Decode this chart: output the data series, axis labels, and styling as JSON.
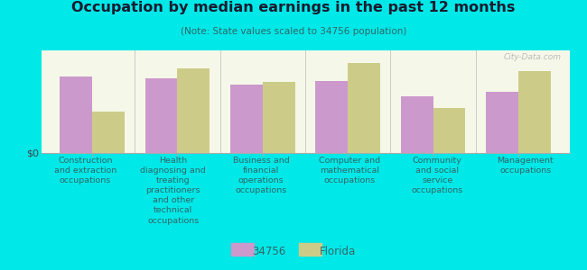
{
  "title": "Occupation by median earnings in the past 12 months",
  "subtitle": "(Note: State values scaled to 34756 population)",
  "categories": [
    "Construction\nand extraction\noccupations",
    "Health\ndiagnosing and\ntreating\npractitioners\nand other\ntechnical\noccupations",
    "Business and\nfinancial\noperations\noccupations",
    "Computer and\nmathematical\noccupations",
    "Community\nand social\nservice\noccupations",
    "Management\noccupations"
  ],
  "values_34756": [
    0.78,
    0.76,
    0.7,
    0.73,
    0.58,
    0.62
  ],
  "values_florida": [
    0.42,
    0.86,
    0.72,
    0.92,
    0.46,
    0.83
  ],
  "color_34756": "#cc99cc",
  "color_florida": "#cccc88",
  "background_color": "#00e8e8",
  "plot_bg_start": "#f5f8e8",
  "plot_bg_end": "#e8f0d0",
  "ylabel": "$0",
  "legend_label_1": "34756",
  "legend_label_2": "Florida",
  "watermark": "City-Data.com",
  "bar_width": 0.38,
  "title_color": "#1a1a2e",
  "subtitle_color": "#336666",
  "label_color": "#336666"
}
